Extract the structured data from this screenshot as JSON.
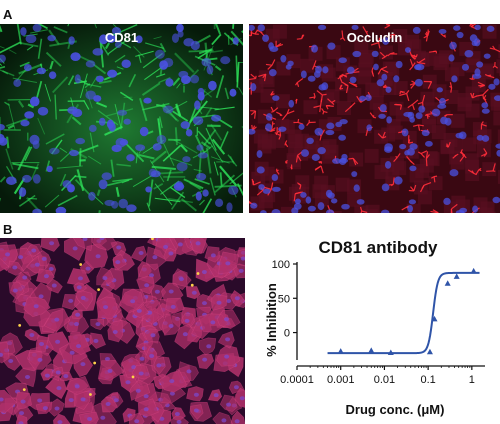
{
  "figure": {
    "panel_a_letter": "A",
    "panel_b_letter": "B",
    "image_labels": {
      "cd81": "CD81",
      "occludin": "Occludin"
    }
  },
  "colors": {
    "green_stain": "#2ee65a",
    "blue_nuclei": "#4a50e0",
    "red_stain": "#ff2d3a",
    "purple_cells": "#b0306a",
    "curve": "#2f54a8"
  },
  "chart_data": {
    "type": "scatter",
    "title": "CD81 antibody",
    "xlabel": "Drug conc. (μM)",
    "ylabel": "% Inhibition",
    "xscale": "log",
    "xlim": [
      0.0001,
      2
    ],
    "ylim": [
      -40,
      100
    ],
    "xticks": [
      "0.0001",
      "0.001",
      "0.01",
      "0.1",
      "1"
    ],
    "yticks": [
      "0",
      "50",
      "100"
    ],
    "series": [
      {
        "marker": "triangle",
        "x": [
          0.001,
          0.005,
          0.014,
          0.11,
          0.14,
          0.28,
          0.45,
          1.1
        ],
        "y": [
          -27,
          -26,
          -29,
          -28,
          20,
          72,
          82,
          90
        ]
      }
    ],
    "fit_curve": {
      "bottom": -30,
      "top": 87,
      "ec50": 0.13,
      "hill": 8
    }
  }
}
